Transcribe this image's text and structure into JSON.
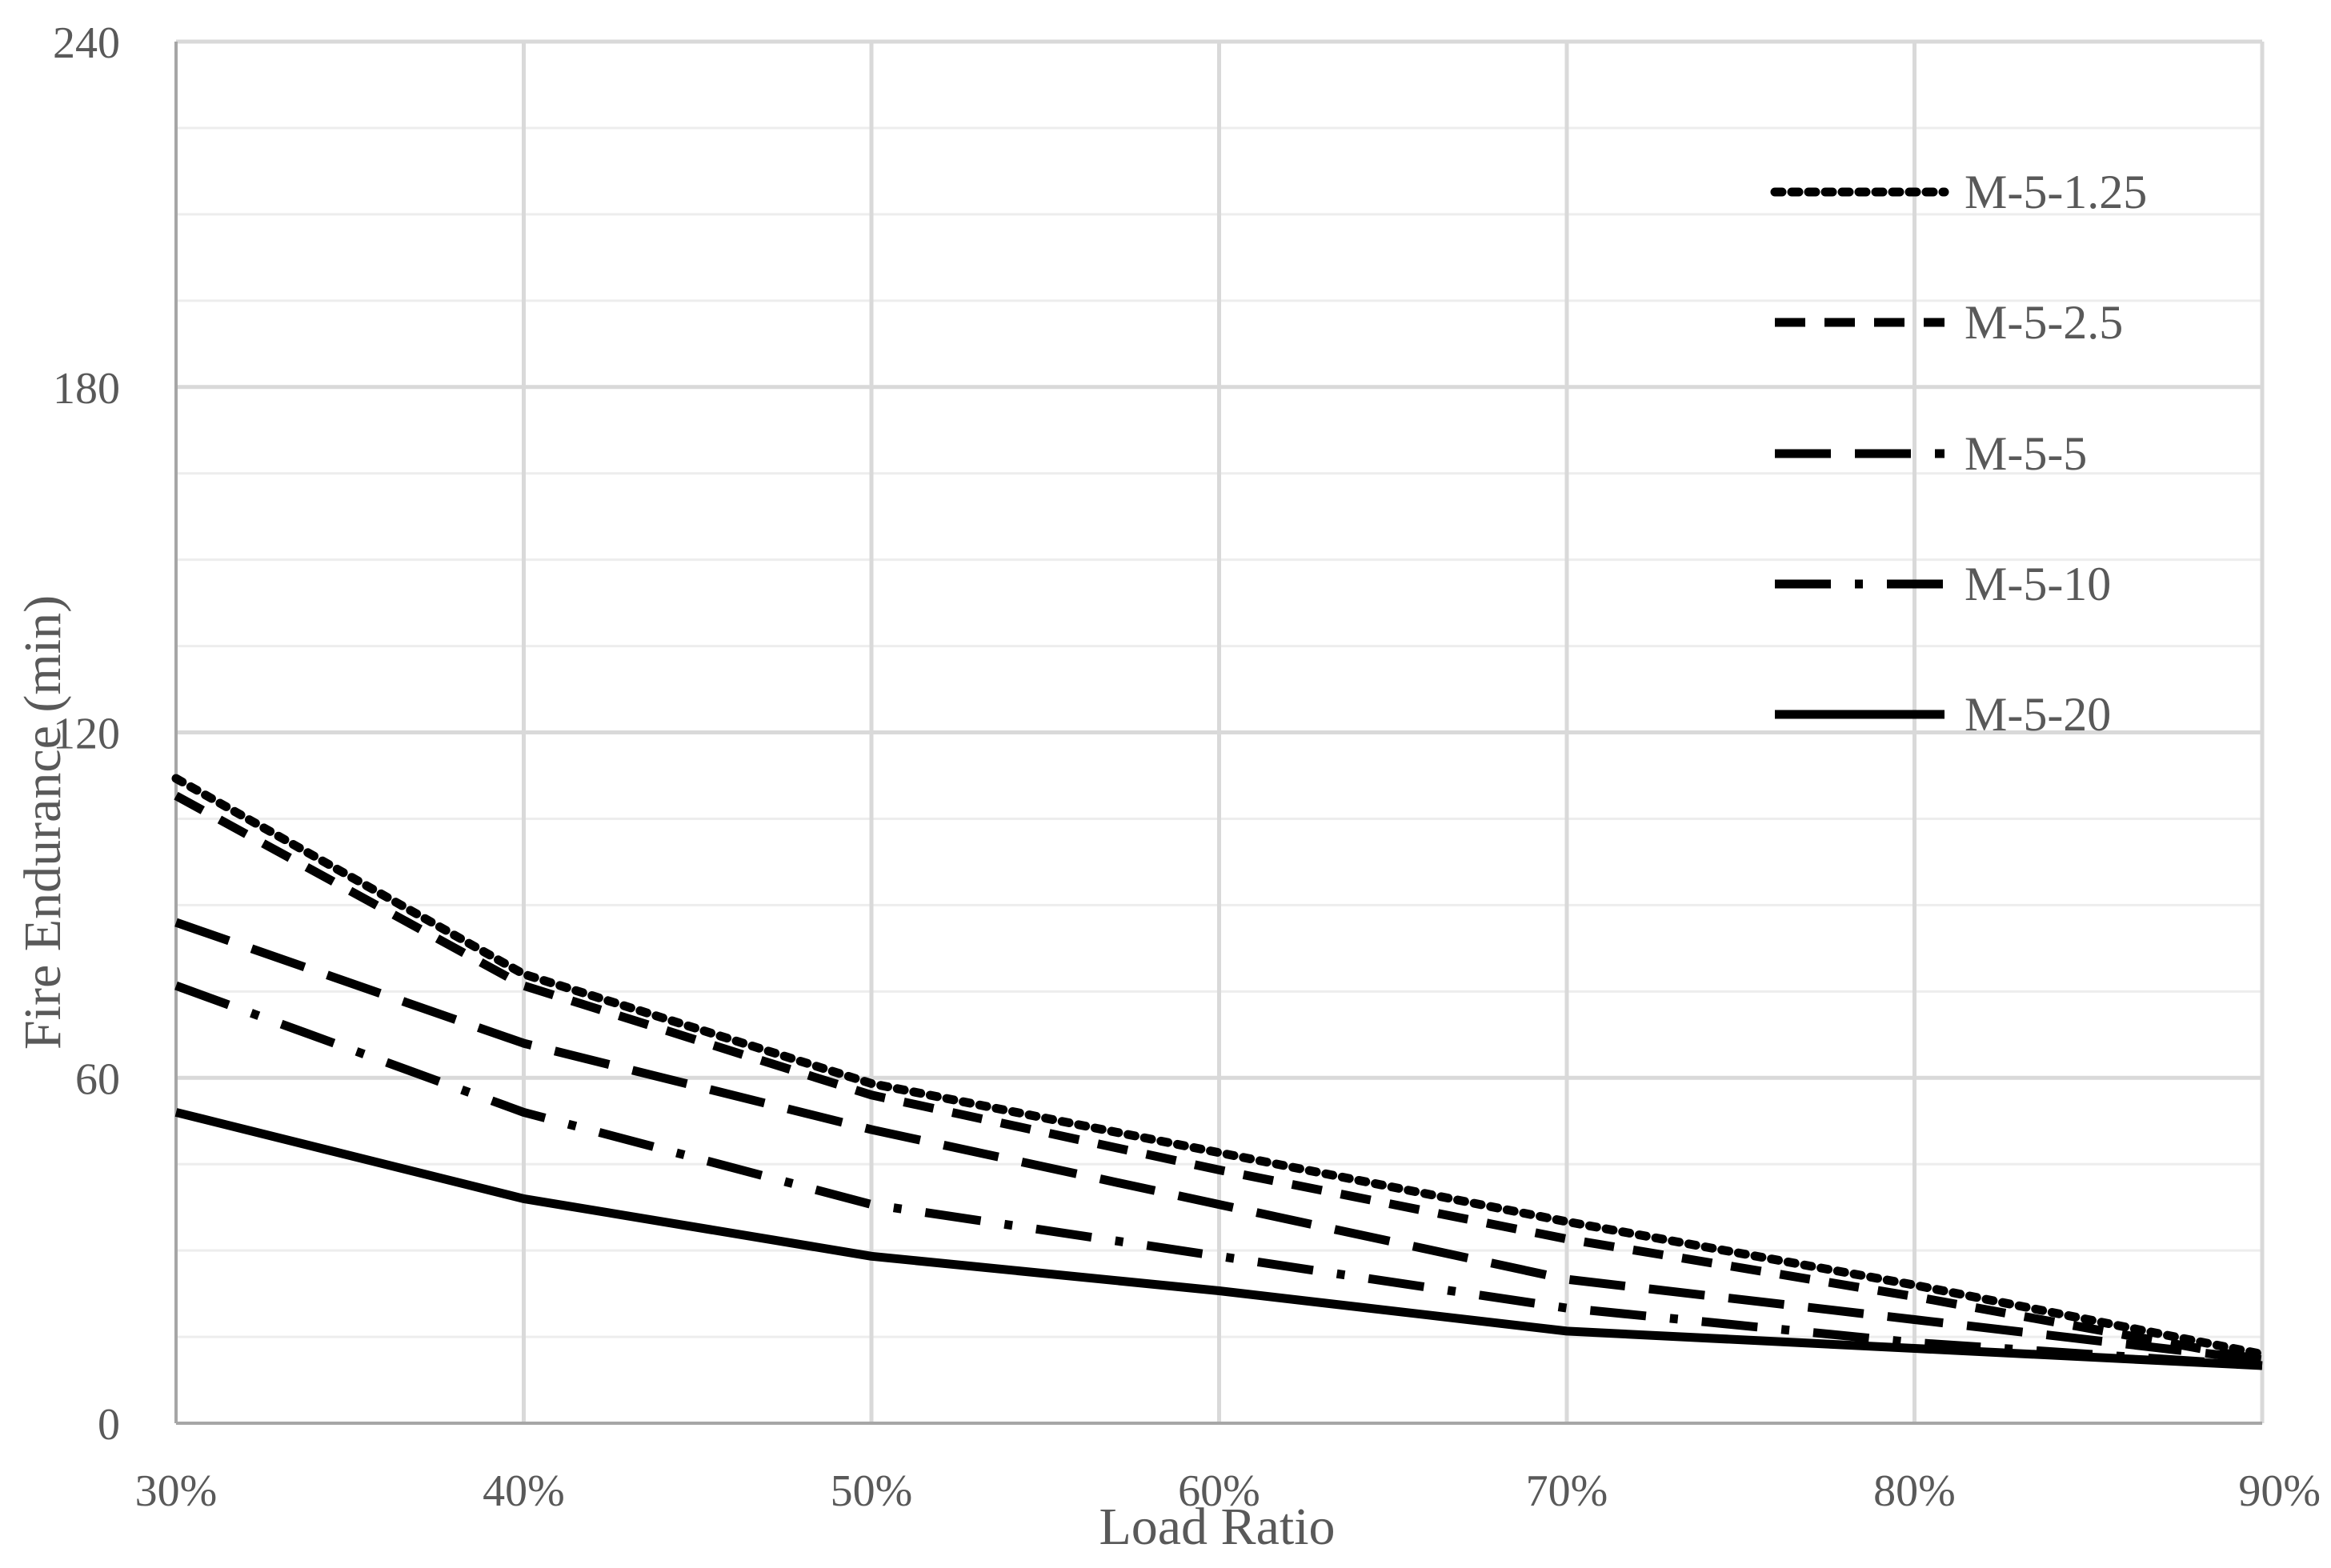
{
  "chart_data": {
    "type": "line",
    "title": "",
    "xlabel": "Load Ratio",
    "ylabel": "Fire Endurance (min)",
    "x": [
      0.3,
      0.4,
      0.5,
      0.6,
      0.7,
      0.8,
      0.9
    ],
    "x_tick_labels": [
      "30%",
      "40%",
      "50%",
      "60%",
      "70%",
      "80%",
      "90%"
    ],
    "y_ticks": [
      0,
      60,
      120,
      180,
      240
    ],
    "y_tick_labels": [
      "0",
      "60",
      "120",
      "180",
      "240"
    ],
    "xlim": [
      0.3,
      0.9
    ],
    "ylim": [
      0,
      240
    ],
    "grid": true,
    "minor_y_grid_step": 15,
    "legend_position": "top-right",
    "series": [
      {
        "name": "M-5-1.25",
        "dash": "dotted",
        "values": [
          112,
          78,
          59,
          47,
          35,
          24,
          12
        ]
      },
      {
        "name": "M-5-2.5",
        "dash": "dashed",
        "values": [
          109,
          76,
          57,
          44,
          32,
          22,
          11
        ]
      },
      {
        "name": "M-5-5",
        "dash": "long-dash",
        "values": [
          87,
          66,
          51,
          38,
          25,
          18,
          11
        ]
      },
      {
        "name": "M-5-10",
        "dash": "long-dash-dot",
        "values": [
          76,
          54,
          38,
          29,
          20,
          14,
          10
        ]
      },
      {
        "name": "M-5-20",
        "dash": "solid",
        "values": [
          54,
          39,
          29,
          23,
          16,
          13,
          10
        ]
      }
    ]
  }
}
